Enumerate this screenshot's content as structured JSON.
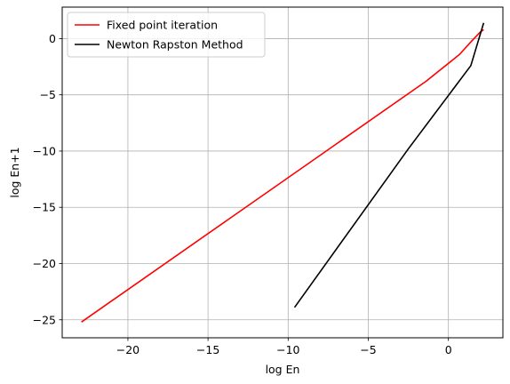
{
  "chart_data": {
    "type": "line",
    "xlabel": "log En",
    "ylabel": "log En+1",
    "xlim": [
      -24.1,
      3.4
    ],
    "ylim": [
      -26.6,
      2.8
    ],
    "xticks": [
      -20,
      -15,
      -10,
      -5,
      0
    ],
    "yticks": [
      -25,
      -20,
      -15,
      -10,
      -5,
      0
    ],
    "xtick_labels": [
      "−20",
      "−15",
      "−10",
      "−5",
      "0"
    ],
    "ytick_labels": [
      "−25",
      "−20",
      "−15",
      "−10",
      "−5",
      "0"
    ],
    "grid": true,
    "legend_position": "top-left",
    "series": [
      {
        "name": "Fixed point iteration",
        "color": "#ff0000",
        "x": [
          -22.9,
          -1.4,
          0.7,
          1.4,
          2.0,
          2.2
        ],
        "y": [
          -25.2,
          -3.8,
          -1.4,
          -0.3,
          0.6,
          0.8
        ]
      },
      {
        "name": "Newton Rapston Method",
        "color": "#000000",
        "x": [
          -9.6,
          -2.5,
          1.4,
          2.2
        ],
        "y": [
          -23.9,
          -9.8,
          -2.4,
          1.4
        ]
      }
    ]
  }
}
